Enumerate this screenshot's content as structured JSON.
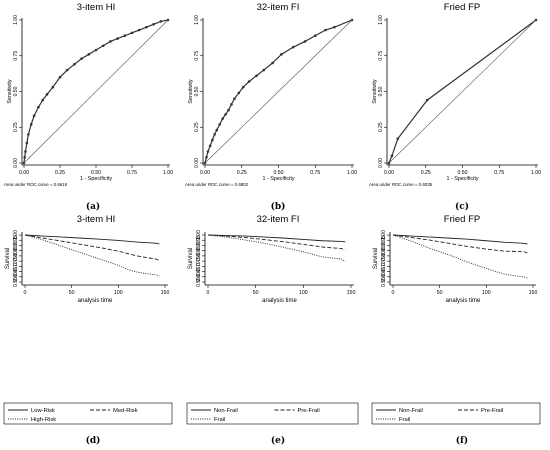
{
  "chart_data": [
    {
      "id": "a",
      "type": "line",
      "title": "3-item HI",
      "panel_label": "(a)",
      "xlabel": "1 - Specificity",
      "ylabel": "Sensitivity",
      "xlim": [
        0,
        1
      ],
      "ylim": [
        0,
        1
      ],
      "xticks": [
        "0.00",
        "0.25",
        "0.50",
        "0.75",
        "1.00"
      ],
      "yticks": [
        "0.00",
        "0.25",
        "0.50",
        "0.75",
        "1.00"
      ],
      "note": "Area under ROC curve = 0.6619",
      "series": [
        {
          "markers": true,
          "x": [
            0,
            0.005,
            0.01,
            0.02,
            0.03,
            0.05,
            0.07,
            0.1,
            0.13,
            0.16,
            0.2,
            0.25,
            0.3,
            0.35,
            0.4,
            0.45,
            0.5,
            0.55,
            0.6,
            0.65,
            0.7,
            0.75,
            0.8,
            0.85,
            0.9,
            0.95,
            1.0
          ],
          "y": [
            0,
            0.04,
            0.08,
            0.14,
            0.2,
            0.27,
            0.33,
            0.39,
            0.44,
            0.48,
            0.53,
            0.6,
            0.65,
            0.69,
            0.73,
            0.76,
            0.79,
            0.82,
            0.85,
            0.87,
            0.89,
            0.91,
            0.93,
            0.95,
            0.97,
            0.99,
            1.0
          ]
        },
        {
          "markers": false,
          "x": [
            0,
            1
          ],
          "y": [
            0,
            1
          ]
        }
      ]
    },
    {
      "id": "b",
      "type": "line",
      "title": "32-item FI",
      "panel_label": "(b)",
      "xlabel": "1 - Specificity",
      "ylabel": "Sensitivity",
      "xlim": [
        0,
        1
      ],
      "ylim": [
        0,
        1
      ],
      "xticks": [
        "0.00",
        "0.25",
        "0.50",
        "0.75",
        "1.00"
      ],
      "yticks": [
        "0.00",
        "0.25",
        "0.50",
        "0.75",
        "1.00"
      ],
      "note": "Area under ROC curve = 0.6802",
      "series": [
        {
          "markers": true,
          "x": [
            0,
            0.01,
            0.02,
            0.035,
            0.05,
            0.065,
            0.08,
            0.1,
            0.12,
            0.14,
            0.16,
            0.18,
            0.2,
            0.23,
            0.26,
            0.3,
            0.35,
            0.4,
            0.46,
            0.52,
            0.6,
            0.68,
            0.75,
            0.82,
            0.88,
            1.0
          ],
          "y": [
            0,
            0.04,
            0.08,
            0.12,
            0.16,
            0.2,
            0.23,
            0.27,
            0.31,
            0.34,
            0.37,
            0.41,
            0.45,
            0.49,
            0.53,
            0.57,
            0.61,
            0.65,
            0.7,
            0.76,
            0.81,
            0.85,
            0.89,
            0.93,
            0.95,
            1.0
          ]
        },
        {
          "markers": false,
          "x": [
            0,
            1
          ],
          "y": [
            0,
            1
          ]
        }
      ]
    },
    {
      "id": "c",
      "type": "line",
      "title": "Fried FP",
      "panel_label": "(c)",
      "xlabel": "1 - Specificity",
      "ylabel": "Sensitivity",
      "xlim": [
        0,
        1
      ],
      "ylim": [
        0,
        1
      ],
      "xticks": [
        "0.00",
        "0.25",
        "0.50",
        "0.75",
        "1.00"
      ],
      "yticks": [
        "0.00",
        "0.25",
        "0.50",
        "0.75",
        "1.00"
      ],
      "note": "Area under ROC curve = 0.6035",
      "series": [
        {
          "markers": true,
          "x": [
            0,
            0.02,
            0.06,
            0.26,
            1.0
          ],
          "y": [
            0,
            0.05,
            0.17,
            0.44,
            1.0
          ]
        },
        {
          "markers": false,
          "x": [
            0,
            1
          ],
          "y": [
            0,
            1
          ]
        }
      ]
    },
    {
      "id": "d",
      "type": "line",
      "title": "3-item HI",
      "panel_label": "(d)",
      "xlabel": "analysis time",
      "ylabel": "Survival",
      "xlim": [
        0,
        150
      ],
      "ylim": [
        0.55,
        1.0
      ],
      "xticks": [
        "0",
        "50",
        "100",
        "150"
      ],
      "yticks": [
        "0.55",
        "0.60",
        "0.65",
        "0.70",
        "0.75",
        "0.80",
        "0.85",
        "0.90",
        "0.95",
        "1.00"
      ],
      "series": [
        {
          "name": "Low-Risk",
          "dash": "solid",
          "x": [
            0,
            20,
            40,
            60,
            80,
            100,
            120,
            140,
            144
          ],
          "y": [
            1.0,
            0.99,
            0.98,
            0.97,
            0.96,
            0.948,
            0.932,
            0.922,
            0.915
          ]
        },
        {
          "name": "Med-Risk",
          "dash": "dashed",
          "x": [
            0,
            20,
            40,
            60,
            80,
            100,
            120,
            140,
            144
          ],
          "y": [
            1.0,
            0.97,
            0.94,
            0.91,
            0.88,
            0.845,
            0.8,
            0.77,
            0.755
          ]
        },
        {
          "name": "High-Risk",
          "dash": "dotted",
          "x": [
            0,
            20,
            40,
            60,
            80,
            100,
            110,
            120,
            130,
            140,
            144
          ],
          "y": [
            1.0,
            0.95,
            0.89,
            0.83,
            0.77,
            0.71,
            0.67,
            0.645,
            0.63,
            0.62,
            0.605
          ]
        }
      ]
    },
    {
      "id": "e",
      "type": "line",
      "title": "32-item FI",
      "panel_label": "(e)",
      "xlabel": "analysis time",
      "ylabel": "Survival",
      "xlim": [
        0,
        150
      ],
      "ylim": [
        0.55,
        1.0
      ],
      "xticks": [
        "0",
        "50",
        "100",
        "150"
      ],
      "yticks": [
        "0.55",
        "0.60",
        "0.65",
        "0.70",
        "0.75",
        "0.80",
        "0.85",
        "0.90",
        "0.95",
        "1.00"
      ],
      "series": [
        {
          "name": "Non-Frail",
          "dash": "solid",
          "x": [
            0,
            20,
            40,
            60,
            80,
            100,
            120,
            140,
            144
          ],
          "y": [
            1.0,
            0.995,
            0.99,
            0.98,
            0.97,
            0.958,
            0.945,
            0.938,
            0.935
          ]
        },
        {
          "name": "Pre-Frail",
          "dash": "dashed",
          "x": [
            0,
            20,
            40,
            60,
            80,
            100,
            120,
            140,
            144
          ],
          "y": [
            1.0,
            0.99,
            0.975,
            0.955,
            0.935,
            0.91,
            0.885,
            0.87,
            0.855
          ]
        },
        {
          "name": "Frail",
          "dash": "dotted",
          "x": [
            0,
            20,
            40,
            60,
            80,
            100,
            120,
            140,
            144
          ],
          "y": [
            1.0,
            0.98,
            0.95,
            0.92,
            0.88,
            0.84,
            0.79,
            0.77,
            0.745
          ]
        }
      ]
    },
    {
      "id": "f",
      "type": "line",
      "title": "Fried FP",
      "panel_label": "(f)",
      "xlabel": "analysis time",
      "ylabel": "Survival",
      "xlim": [
        0,
        150
      ],
      "ylim": [
        0.55,
        1.0
      ],
      "xticks": [
        "0",
        "50",
        "100",
        "150"
      ],
      "yticks": [
        "0.55",
        "0.60",
        "0.65",
        "0.70",
        "0.75",
        "0.80",
        "0.85",
        "0.90",
        "0.95",
        "1.00"
      ],
      "series": [
        {
          "name": "Non-Frail",
          "dash": "solid",
          "x": [
            0,
            20,
            40,
            60,
            80,
            100,
            120,
            140,
            144
          ],
          "y": [
            1.0,
            0.99,
            0.98,
            0.97,
            0.96,
            0.945,
            0.93,
            0.92,
            0.915
          ]
        },
        {
          "name": "Pre-Frail",
          "dash": "dashed",
          "x": [
            0,
            20,
            40,
            60,
            80,
            100,
            120,
            140,
            144
          ],
          "y": [
            1.0,
            0.975,
            0.95,
            0.92,
            0.89,
            0.865,
            0.845,
            0.84,
            0.83
          ]
        },
        {
          "name": "Frail",
          "dash": "dotted",
          "x": [
            0,
            20,
            40,
            60,
            80,
            100,
            110,
            120,
            130,
            140,
            144
          ],
          "y": [
            1.0,
            0.94,
            0.87,
            0.81,
            0.74,
            0.68,
            0.65,
            0.625,
            0.61,
            0.6,
            0.585
          ]
        }
      ]
    }
  ]
}
